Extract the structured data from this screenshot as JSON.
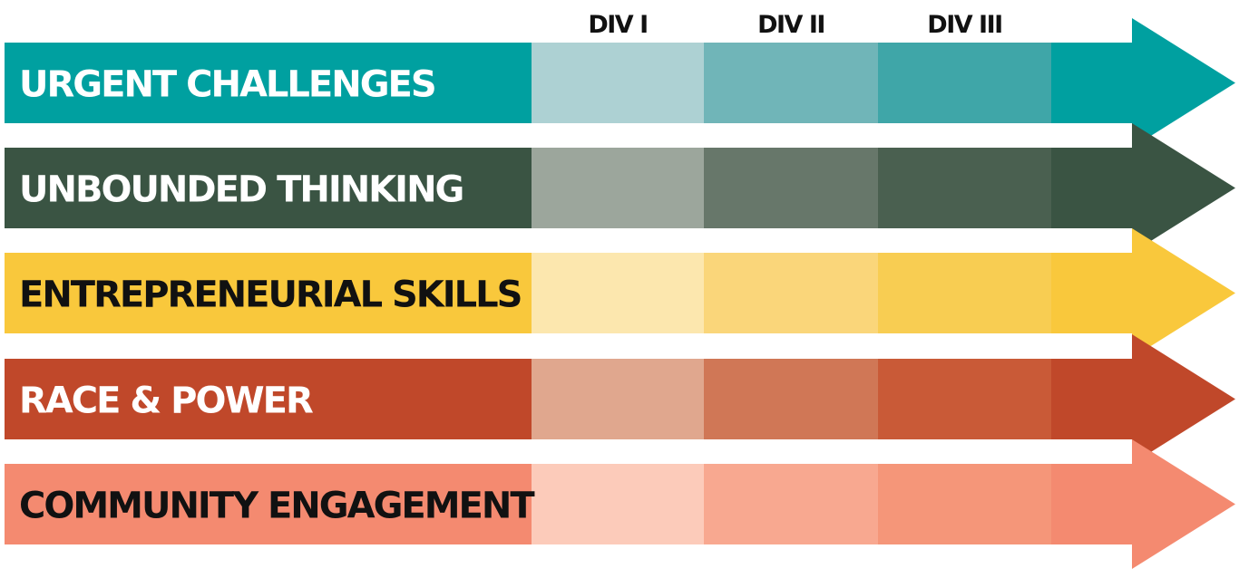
{
  "columns": [
    {
      "label": "DIV I"
    },
    {
      "label": "DIV II"
    },
    {
      "label": "DIV III"
    }
  ],
  "rows": [
    {
      "label": "URGENT CHALLENGES",
      "base_color": "#00A0A0",
      "label_color": "#FFFFFF",
      "segment_colors": [
        "#ADD1D3",
        "#70B5B8",
        "#3FA6A8"
      ]
    },
    {
      "label": "UNBOUNDED THINKING",
      "base_color": "#3A5443",
      "label_color": "#FFFFFF",
      "segment_colors": [
        "#9CA69C",
        "#67776A",
        "#4A6050"
      ]
    },
    {
      "label": "ENTREPRENEURIAL SKILLS",
      "base_color": "#F9C83C",
      "label_color": "#111111",
      "segment_colors": [
        "#FCE7AE",
        "#FAD67A",
        "#F8CD52"
      ]
    },
    {
      "label": "RACE & POWER",
      "base_color": "#C0482A",
      "label_color": "#FFFFFF",
      "segment_colors": [
        "#E0A78E",
        "#D07756",
        "#C95A37"
      ]
    },
    {
      "label": "COMMUNITY ENGAGEMENT",
      "base_color": "#F48A70",
      "label_color": "#111111",
      "segment_colors": [
        "#FCCBBA",
        "#F8A890",
        "#F59679"
      ]
    }
  ]
}
